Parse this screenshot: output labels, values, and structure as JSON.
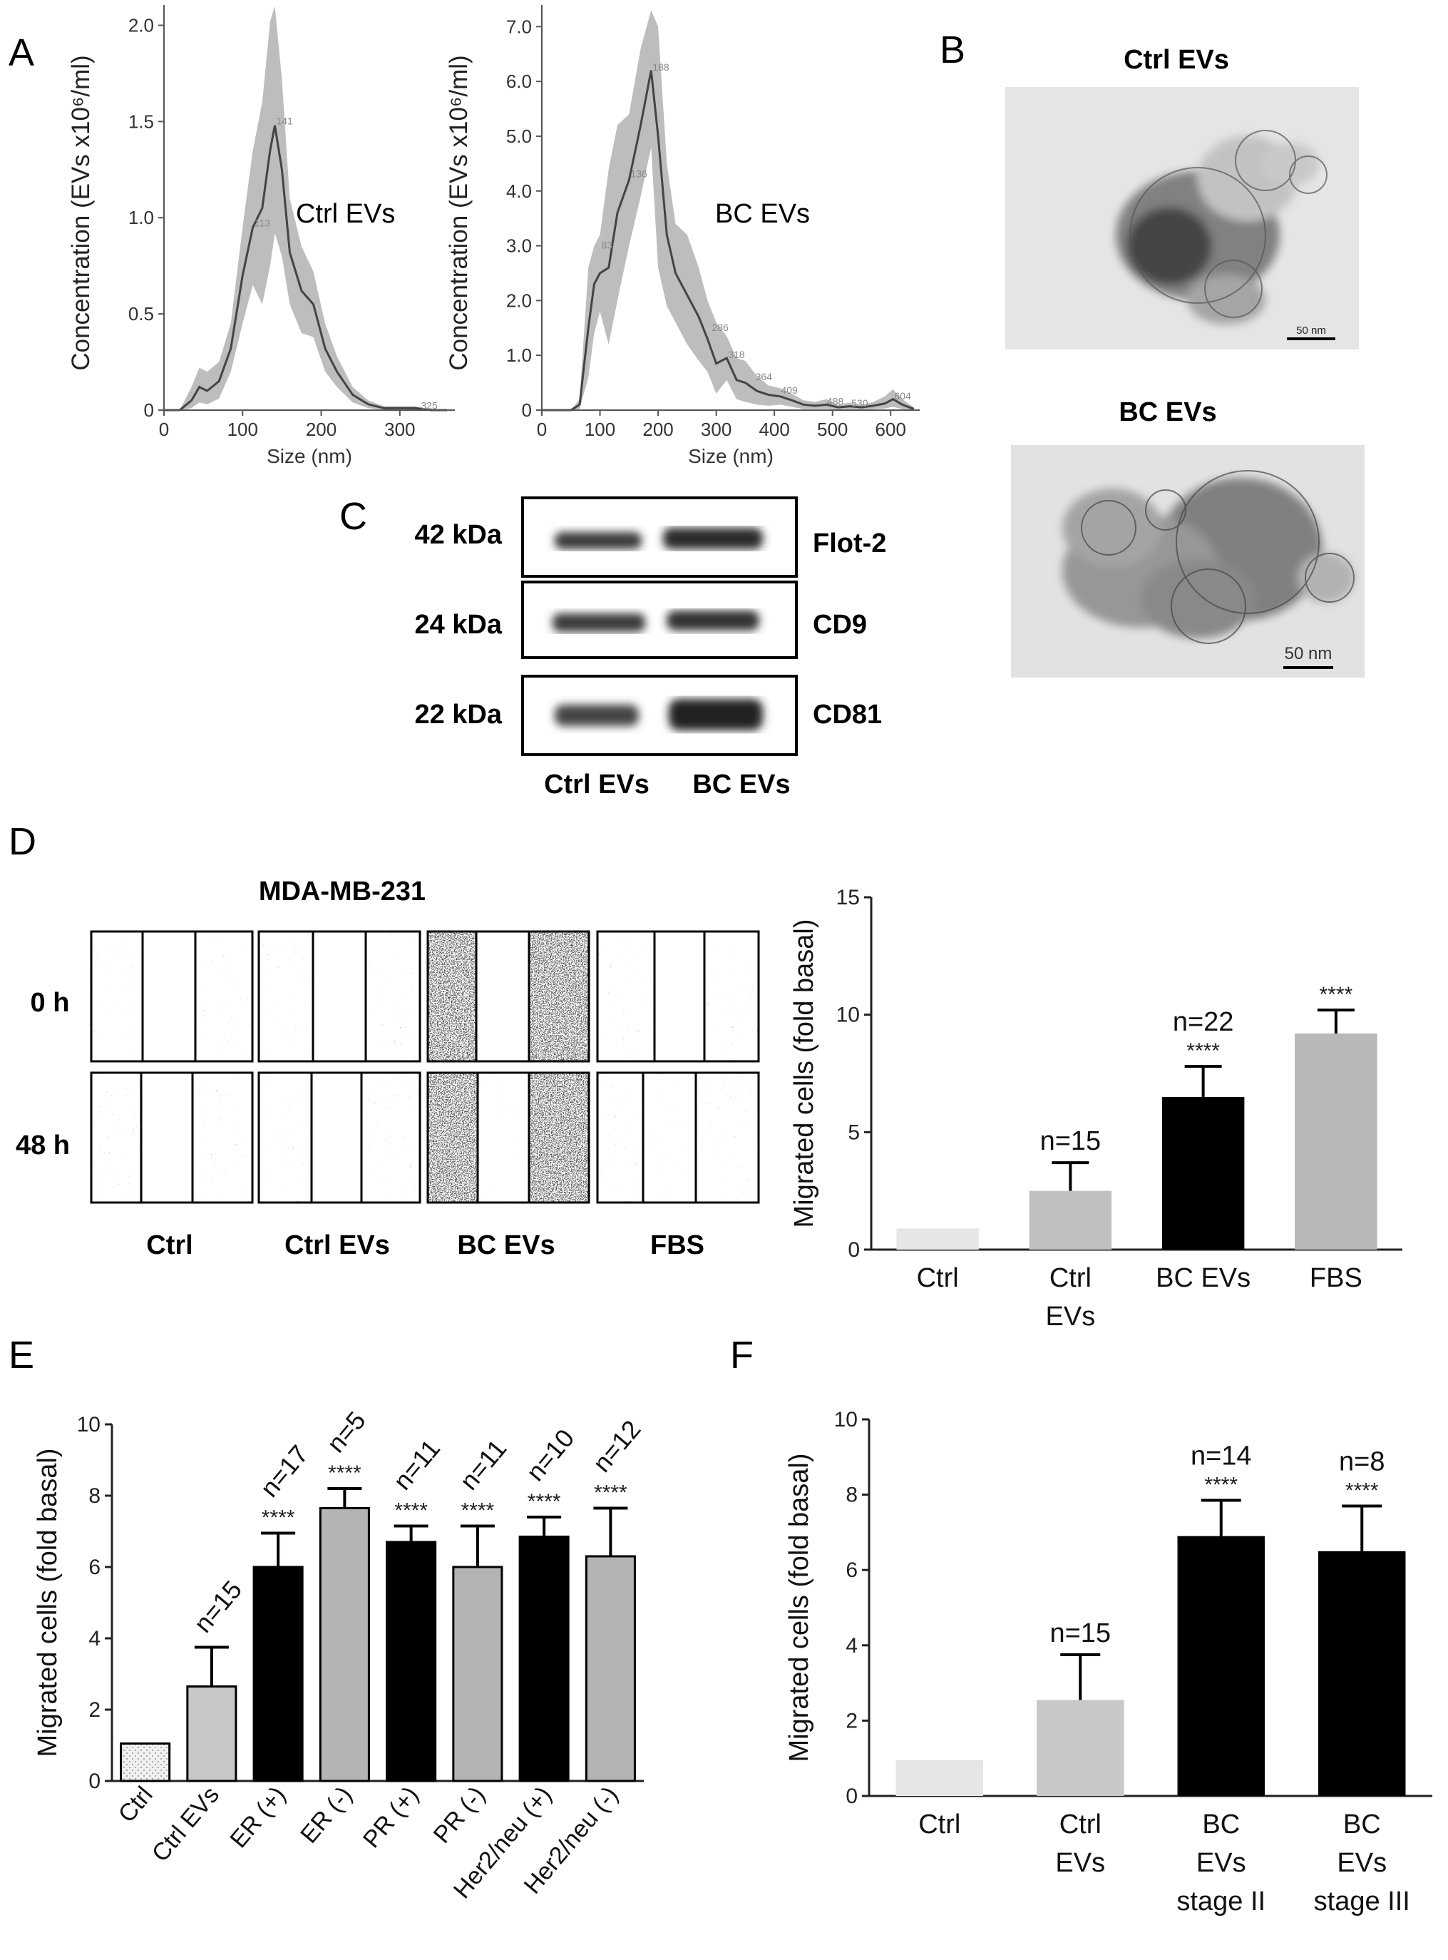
{
  "panels": {
    "A": "A",
    "B": "B",
    "C": "C",
    "D": "D",
    "E": "E",
    "F": "F"
  },
  "chart_data": [
    {
      "id": "A1",
      "type": "area",
      "title": "Ctrl EVs",
      "xlabel": "Size (nm)",
      "ylabel": "Concentration (EVs x10⁶/ml)",
      "xlim": [
        0,
        370
      ],
      "ylim": [
        0,
        2.05
      ],
      "xticks": [
        "0",
        "100",
        "200",
        "300"
      ],
      "xtick_values": [
        0,
        100,
        200,
        300
      ],
      "yticks": [
        "0",
        "0.5",
        "1.0",
        "1.5",
        "2.0"
      ],
      "ytick_values": [
        0,
        0.5,
        1.0,
        1.5,
        2.0
      ],
      "peak_labels": [
        {
          "text": "141",
          "x": 141,
          "y": 1.5
        },
        {
          "text": "113",
          "x": 113,
          "y": 0.97
        },
        {
          "text": "325",
          "x": 325,
          "y": 0.02
        }
      ],
      "series": [
        {
          "x": [
            0,
            20,
            35,
            45,
            55,
            70,
            85,
            100,
            113,
            125,
            135,
            141,
            150,
            160,
            175,
            190,
            205,
            220,
            240,
            260,
            280,
            300,
            320,
            340,
            360
          ],
          "y": [
            0,
            0,
            0.05,
            0.12,
            0.1,
            0.15,
            0.32,
            0.7,
            0.95,
            1.05,
            1.35,
            1.48,
            1.25,
            0.82,
            0.62,
            0.55,
            0.32,
            0.2,
            0.08,
            0.03,
            0.01,
            0.01,
            0.01,
            0,
            0
          ],
          "upper": [
            0,
            0,
            0.12,
            0.22,
            0.2,
            0.25,
            0.45,
            0.95,
            1.35,
            1.6,
            2.02,
            2.1,
            1.72,
            1.1,
            0.85,
            0.72,
            0.45,
            0.28,
            0.12,
            0.05,
            0.02,
            0.02,
            0.02,
            0,
            0
          ],
          "lower": [
            0,
            0,
            0.01,
            0.04,
            0.03,
            0.06,
            0.2,
            0.45,
            0.65,
            0.55,
            0.75,
            0.92,
            0.8,
            0.55,
            0.4,
            0.38,
            0.2,
            0.12,
            0.04,
            0.01,
            0,
            0,
            0,
            0,
            0
          ]
        }
      ]
    },
    {
      "id": "A2",
      "type": "area",
      "title": "BC EVs",
      "xlabel": "Size (nm)",
      "ylabel": "Concentration (EVs x10⁶/ml)",
      "xlim": [
        0,
        650
      ],
      "ylim": [
        0,
        7.2
      ],
      "xticks": [
        "0",
        "100",
        "200",
        "300",
        "400",
        "500",
        "600"
      ],
      "xtick_values": [
        0,
        100,
        200,
        300,
        400,
        500,
        600
      ],
      "yticks": [
        "0",
        "1.0",
        "2.0",
        "3.0",
        "4.0",
        "5.0",
        "6.0",
        "7.0"
      ],
      "ytick_values": [
        0,
        1,
        2,
        3,
        4,
        5,
        6,
        7
      ],
      "peak_labels": [
        {
          "text": "188",
          "x": 188,
          "y": 6.25
        },
        {
          "text": "136",
          "x": 150,
          "y": 4.3
        },
        {
          "text": "83",
          "x": 100,
          "y": 3.0
        },
        {
          "text": "286",
          "x": 290,
          "y": 1.5
        },
        {
          "text": "318",
          "x": 318,
          "y": 1.0
        },
        {
          "text": "364",
          "x": 365,
          "y": 0.6
        },
        {
          "text": "409",
          "x": 409,
          "y": 0.35
        },
        {
          "text": "488",
          "x": 488,
          "y": 0.15
        },
        {
          "text": "530",
          "x": 530,
          "y": 0.12
        },
        {
          "text": "604",
          "x": 604,
          "y": 0.25
        }
      ],
      "series": [
        {
          "x": [
            0,
            50,
            65,
            80,
            90,
            100,
            115,
            130,
            150,
            170,
            188,
            200,
            215,
            230,
            250,
            270,
            285,
            300,
            318,
            335,
            350,
            370,
            390,
            410,
            430,
            450,
            470,
            490,
            510,
            530,
            550,
            570,
            590,
            604,
            620,
            640
          ],
          "y": [
            0,
            0,
            0.1,
            1.5,
            2.3,
            2.5,
            2.6,
            3.6,
            4.2,
            5.2,
            6.2,
            5.0,
            3.2,
            2.5,
            2.1,
            1.7,
            1.3,
            0.85,
            0.95,
            0.55,
            0.5,
            0.35,
            0.28,
            0.25,
            0.18,
            0.1,
            0.08,
            0.1,
            0.05,
            0.07,
            0.05,
            0.08,
            0.12,
            0.2,
            0.1,
            0.02
          ],
          "upper": [
            0,
            0,
            0.2,
            2.6,
            3.0,
            3.2,
            4.4,
            5.2,
            5.4,
            6.6,
            7.3,
            7.0,
            4.5,
            3.4,
            3.2,
            2.6,
            2.0,
            1.6,
            1.35,
            0.95,
            0.9,
            0.62,
            0.45,
            0.4,
            0.3,
            0.18,
            0.15,
            0.2,
            0.1,
            0.14,
            0.1,
            0.15,
            0.25,
            0.38,
            0.2,
            0.05
          ],
          "lower": [
            0,
            0,
            0.02,
            0.6,
            1.4,
            1.8,
            1.2,
            2.0,
            3.0,
            3.9,
            4.8,
            2.6,
            1.9,
            1.6,
            1.2,
            0.9,
            0.7,
            0.3,
            0.55,
            0.2,
            0.15,
            0.1,
            0.08,
            0.1,
            0.06,
            0.02,
            0.02,
            0.02,
            0.01,
            0.01,
            0.01,
            0.02,
            0.03,
            0.06,
            0.02,
            0
          ]
        }
      ]
    },
    {
      "id": "D",
      "type": "bar",
      "ylabel": "Migrated cells (fold basal)",
      "ylim": [
        0,
        15
      ],
      "yticks": [
        "0",
        "5",
        "10",
        "15"
      ],
      "ytick_values": [
        0,
        5,
        10,
        15
      ],
      "categories": [
        [
          "Ctrl"
        ],
        [
          "Ctrl",
          "EVs"
        ],
        [
          "BC EVs"
        ],
        [
          "FBS"
        ]
      ],
      "values": [
        0.9,
        2.5,
        6.5,
        9.2
      ],
      "errors": [
        0,
        1.2,
        1.3,
        1.0
      ],
      "colors": [
        "#e6e6e6",
        "#c0c0c0",
        "#000000",
        "#b8b8b8"
      ],
      "bar_outline": false,
      "n_labels": [
        "",
        "n=15",
        "n=22",
        ""
      ],
      "sig": [
        "",
        "",
        "****",
        "****"
      ]
    },
    {
      "id": "E",
      "type": "bar",
      "ylabel": "Migrated cells (fold basal)",
      "ylim": [
        0,
        10
      ],
      "yticks": [
        "0",
        "2",
        "4",
        "6",
        "8",
        "10"
      ],
      "ytick_values": [
        0,
        2,
        4,
        6,
        8,
        10
      ],
      "categories": [
        "Ctrl",
        "Ctrl EVs",
        "ER (+)",
        "ER (-)",
        "PR (+)",
        "PR (-)",
        "Her2/neu (+)",
        "Her2/neu (-)"
      ],
      "values": [
        1.05,
        2.65,
        6.0,
        7.65,
        6.7,
        6.0,
        6.85,
        6.3
      ],
      "errors": [
        0,
        1.1,
        0.95,
        0.55,
        0.45,
        1.15,
        0.55,
        1.35
      ],
      "colors": [
        "#f0f0f0",
        "#c8c8c8",
        "#000000",
        "#b4b4b4",
        "#000000",
        "#b4b4b4",
        "#000000",
        "#b4b4b4"
      ],
      "bar_outline": true,
      "n_labels": [
        "",
        "n=15",
        "n=17",
        "n=5",
        "n=11",
        "n=11",
        "n=10",
        "n=12"
      ],
      "sig": [
        "",
        "",
        "****",
        "****",
        "****",
        "****",
        "****",
        "****"
      ]
    },
    {
      "id": "F",
      "type": "bar",
      "ylabel": "Migrated cells (fold basal)",
      "ylim": [
        0,
        10
      ],
      "yticks": [
        "0",
        "2",
        "4",
        "6",
        "8",
        "10"
      ],
      "ytick_values": [
        0,
        2,
        4,
        6,
        8,
        10
      ],
      "categories": [
        [
          "Ctrl"
        ],
        [
          "Ctrl",
          "EVs"
        ],
        [
          "BC",
          "EVs",
          "stage II"
        ],
        [
          "BC",
          "EVs",
          "stage III"
        ]
      ],
      "values": [
        0.95,
        2.55,
        6.9,
        6.5
      ],
      "errors": [
        0,
        1.2,
        0.95,
        1.2
      ],
      "colors": [
        "#e6e6e6",
        "#c8c8c8",
        "#000000",
        "#000000"
      ],
      "bar_outline": false,
      "n_labels": [
        "",
        "n=15",
        "n=14",
        "n=8"
      ],
      "sig": [
        "",
        "",
        "****",
        "****"
      ]
    }
  ],
  "panel_a": {
    "label1": "Ctrl EVs",
    "label2": "BC EVs"
  },
  "panel_b": {
    "title1": "Ctrl EVs",
    "title2": "BC EVs",
    "scale1": "50 nm",
    "scale2": "50 nm"
  },
  "panel_c": {
    "rows": [
      {
        "mw": "42 kDa",
        "protein": "Flot-2"
      },
      {
        "mw": "24 kDa",
        "protein": "CD9"
      },
      {
        "mw": "22 kDa",
        "protein": "CD81"
      }
    ],
    "lanes": [
      "Ctrl EVs",
      "BC EVs"
    ]
  },
  "panel_d": {
    "cell_line": "MDA-MB-231",
    "timepoints": [
      "0 h",
      "48 h"
    ],
    "conditions": [
      "Ctrl",
      "Ctrl EVs",
      "BC EVs",
      "FBS"
    ]
  }
}
